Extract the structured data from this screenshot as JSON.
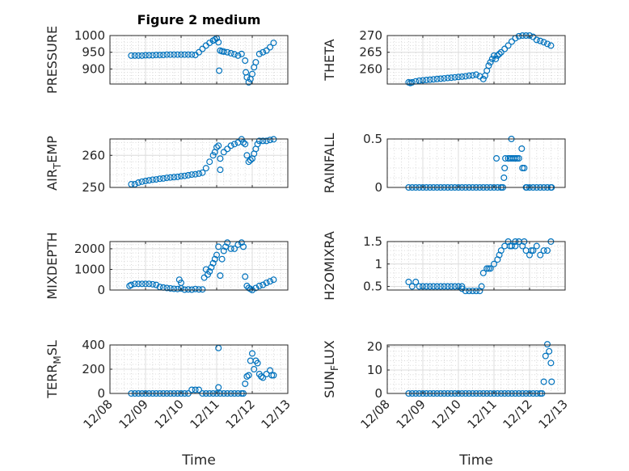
{
  "figure_title": "Figure 2 medium",
  "chart_data": [
    {
      "type": "scatter",
      "title": "Figure 2 medium",
      "ylabel": "PRESSURE",
      "xlabel": "",
      "ylim": [
        855,
        1000
      ],
      "yticks": [
        900,
        950,
        1000
      ],
      "y": [
        940,
        940,
        940,
        940,
        941,
        941,
        941,
        942,
        942,
        942,
        943,
        943,
        943,
        943,
        943,
        943,
        943,
        943,
        942,
        950,
        960,
        970,
        978,
        985,
        992,
        955,
        952,
        950,
        947,
        944,
        940,
        945,
        925,
        860,
        885,
        920,
        945,
        950,
        955,
        965,
        978
      ],
      "extra": [
        [
          3.07,
          895
        ],
        [
          3.05,
          980
        ],
        [
          3.85,
          875
        ],
        [
          3.95,
          870
        ],
        [
          3.82,
          890
        ],
        [
          4.05,
          905
        ],
        [
          2.95,
          988
        ],
        [
          3.15,
          953
        ]
      ]
    },
    {
      "type": "scatter",
      "ylabel": "THETA",
      "xlabel": "",
      "ylim": [
        255.5,
        270
      ],
      "yticks": [
        260,
        265,
        270
      ],
      "y": [
        256,
        256,
        256.3,
        256.5,
        256.6,
        256.7,
        256.8,
        256.9,
        257,
        257.1,
        257.2,
        257.3,
        257.4,
        257.5,
        257.6,
        257.7,
        257.8,
        258,
        258.1,
        258.3,
        257.8,
        257,
        259.5,
        262,
        264,
        264,
        265,
        266,
        267,
        268.2,
        269.2,
        269.8,
        270,
        270,
        270,
        269.6,
        268.7,
        268.4,
        268,
        267.5,
        267
      ],
      "extra": [
        [
          2.75,
          258
        ],
        [
          2.85,
          261
        ],
        [
          2.95,
          263
        ],
        [
          3.05,
          263
        ],
        [
          3.15,
          264.5
        ],
        [
          0.65,
          255.8
        ]
      ]
    },
    {
      "type": "scatter",
      "ylabel": "AIR_TEMP",
      "xlabel": "",
      "ylim": [
        250,
        265.1
      ],
      "yticks": [
        250,
        260
      ],
      "y": [
        251,
        251,
        251.5,
        251.8,
        252,
        252.2,
        252.4,
        252.5,
        252.7,
        252.8,
        253,
        253.1,
        253.2,
        253.3,
        253.5,
        253.6,
        253.8,
        254,
        254.1,
        254.3,
        254.6,
        256,
        258,
        260,
        262.5,
        259,
        261,
        262,
        263,
        263.5,
        264,
        265,
        263.5,
        258,
        259,
        262,
        264.5,
        264.5,
        264.5,
        264.8,
        265
      ],
      "extra": [
        [
          3.05,
          263
        ],
        [
          3.1,
          255.5
        ],
        [
          2.95,
          261
        ],
        [
          3.85,
          260
        ],
        [
          3.95,
          258.5
        ],
        [
          4.05,
          260.5
        ],
        [
          4.15,
          263.5
        ],
        [
          3.75,
          264
        ]
      ]
    },
    {
      "type": "scatter",
      "ylabel": "RAINFALL",
      "xlabel": "",
      "ylim": [
        0,
        0.5
      ],
      "yticks": [
        0,
        0.5
      ],
      "y": [
        0,
        0,
        0,
        0,
        0,
        0,
        0,
        0,
        0,
        0,
        0,
        0,
        0,
        0,
        0,
        0,
        0,
        0,
        0,
        0,
        0,
        0,
        0,
        0,
        0,
        0,
        0,
        0.2,
        0.3,
        0.3,
        0.3,
        0.3,
        0.2,
        0,
        0,
        0,
        0,
        0,
        0,
        0,
        0
      ],
      "extra": [
        [
          3.07,
          0.3
        ],
        [
          3.28,
          0.1
        ],
        [
          3.32,
          0.3
        ],
        [
          3.45,
          0.3
        ],
        [
          3.49,
          0.5
        ],
        [
          3.55,
          0.3
        ],
        [
          3.65,
          0.3
        ],
        [
          3.78,
          0.4
        ],
        [
          3.85,
          0.2
        ],
        [
          3.25,
          0
        ],
        [
          3.2,
          0
        ],
        [
          3.92,
          0
        ],
        [
          4.62,
          0
        ]
      ]
    },
    {
      "type": "scatter",
      "ylabel": "MIXDEPTH",
      "xlabel": "",
      "ylim": [
        0,
        2350
      ],
      "yticks": [
        0,
        1000,
        2000
      ],
      "y": [
        250,
        300,
        300,
        300,
        300,
        300,
        280,
        250,
        150,
        120,
        100,
        80,
        60,
        50,
        80,
        20,
        30,
        20,
        50,
        30,
        30,
        1000,
        900,
        1300,
        1700,
        700,
        1900,
        2300,
        2000,
        2000,
        2200,
        2300,
        650,
        100,
        0,
        100,
        200,
        250,
        350,
        420,
        500
      ],
      "extra": [
        [
          1.95,
          500
        ],
        [
          2.0,
          350
        ],
        [
          2.65,
          600
        ],
        [
          2.75,
          750
        ],
        [
          2.85,
          1100
        ],
        [
          2.95,
          1500
        ],
        [
          3.05,
          2100
        ],
        [
          3.15,
          1500
        ],
        [
          3.25,
          2100
        ],
        [
          3.75,
          2100
        ],
        [
          3.85,
          200
        ],
        [
          3.95,
          50
        ],
        [
          0.55,
          200
        ]
      ]
    },
    {
      "type": "scatter",
      "ylabel": "H2OMIXRA",
      "xlabel": "",
      "ylim": [
        0.42,
        1.5
      ],
      "yticks": [
        0.5,
        1,
        1.5
      ],
      "y": [
        0.6,
        0.5,
        0.6,
        0.5,
        0.5,
        0.5,
        0.5,
        0.5,
        0.5,
        0.5,
        0.5,
        0.5,
        0.5,
        0.5,
        0.5,
        0.5,
        0.4,
        0.4,
        0.4,
        0.4,
        0.4,
        0.8,
        0.9,
        0.9,
        1.0,
        1.1,
        1.3,
        1.4,
        1.5,
        1.4,
        1.4,
        1.5,
        1.4,
        1.3,
        1.2,
        1.3,
        1.4,
        1.2,
        1.3,
        1.3,
        1.5
      ],
      "extra": [
        [
          2.65,
          0.5
        ],
        [
          2.1,
          0.45
        ],
        [
          3.15,
          1.2
        ],
        [
          3.45,
          1.4
        ],
        [
          3.6,
          1.5
        ],
        [
          3.85,
          1.5
        ],
        [
          4.05,
          1.3
        ],
        [
          2.85,
          0.9
        ]
      ]
    },
    {
      "type": "scatter",
      "ylabel": "TERR_MSL",
      "xlabel": "Time",
      "ylim": [
        0,
        400
      ],
      "yticks": [
        0,
        200,
        400
      ],
      "y": [
        0,
        0,
        0,
        0,
        0,
        0,
        0,
        0,
        0,
        0,
        0,
        0,
        0,
        0,
        0,
        0,
        0,
        30,
        30,
        30,
        0,
        0,
        0,
        0,
        0,
        0,
        0,
        0,
        0,
        0,
        0,
        0,
        80,
        150,
        330,
        270,
        160,
        130,
        160,
        190,
        150
      ],
      "extra": [
        [
          3.05,
          375
        ],
        [
          3.05,
          50
        ],
        [
          3.85,
          140
        ],
        [
          3.95,
          270
        ],
        [
          4.05,
          200
        ],
        [
          4.15,
          250
        ],
        [
          4.25,
          140
        ],
        [
          4.55,
          150
        ],
        [
          3.75,
          0
        ]
      ]
    },
    {
      "type": "scatter",
      "ylabel": "SUN_FLUX",
      "xlabel": "Time",
      "ylim": [
        0,
        20.7
      ],
      "yticks": [
        0,
        10,
        20
      ],
      "y": [
        0,
        0,
        0,
        0,
        0,
        0,
        0,
        0,
        0,
        0,
        0,
        0,
        0,
        0,
        0,
        0,
        0,
        0,
        0,
        0,
        0,
        0,
        0,
        0,
        0,
        0,
        0,
        0,
        0,
        0,
        0,
        0,
        0,
        0,
        0,
        0,
        0,
        0,
        5,
        21,
        13
      ],
      "extra": [
        [
          4.45,
          16
        ],
        [
          4.55,
          18
        ],
        [
          4.62,
          5
        ],
        [
          4.35,
          0
        ]
      ]
    }
  ],
  "x_common": {
    "start_day": 0.6,
    "step_day": 0.1,
    "xlim_days": [
      0,
      5
    ],
    "xticklabels": [
      "12/08",
      "12/09",
      "12/10",
      "12/11",
      "12/12",
      "12/13"
    ]
  },
  "colors": {
    "marker": "#0072BD",
    "axes": "#262626",
    "grid": "#dcdcdc"
  }
}
